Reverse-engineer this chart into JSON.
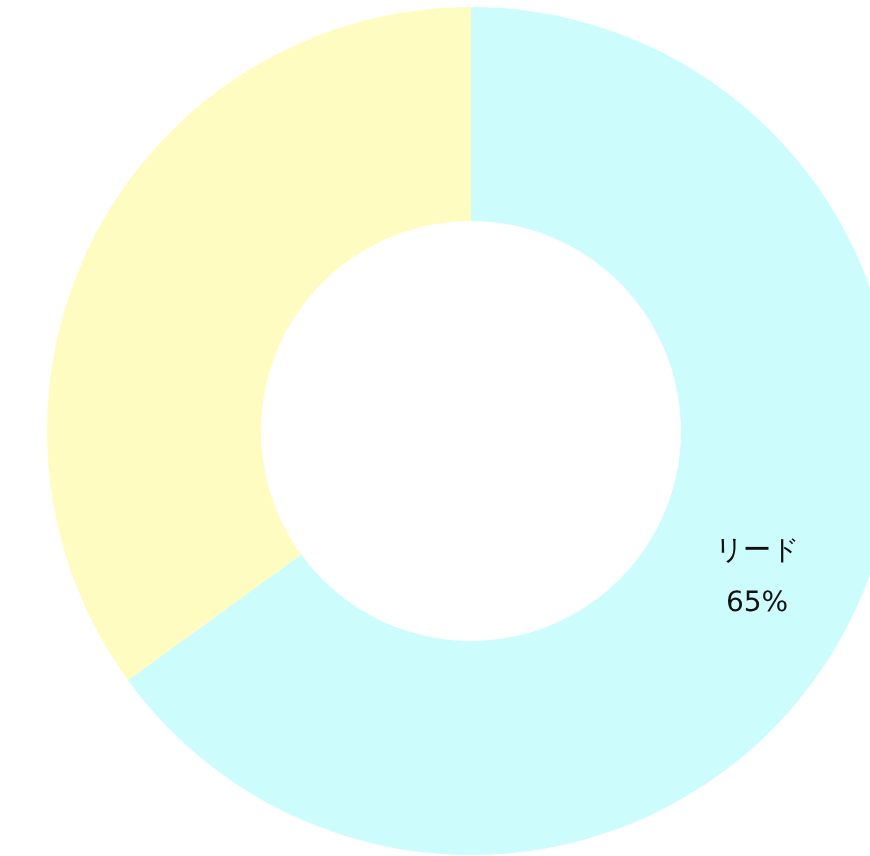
{
  "chart_data": {
    "type": "donut",
    "categories": [
      "リード",
      null
    ],
    "values": [
      65,
      35
    ],
    "colors": [
      "#cdfcfc",
      "#fffcc2"
    ],
    "value_labels": [
      "65%",
      null
    ]
  }
}
